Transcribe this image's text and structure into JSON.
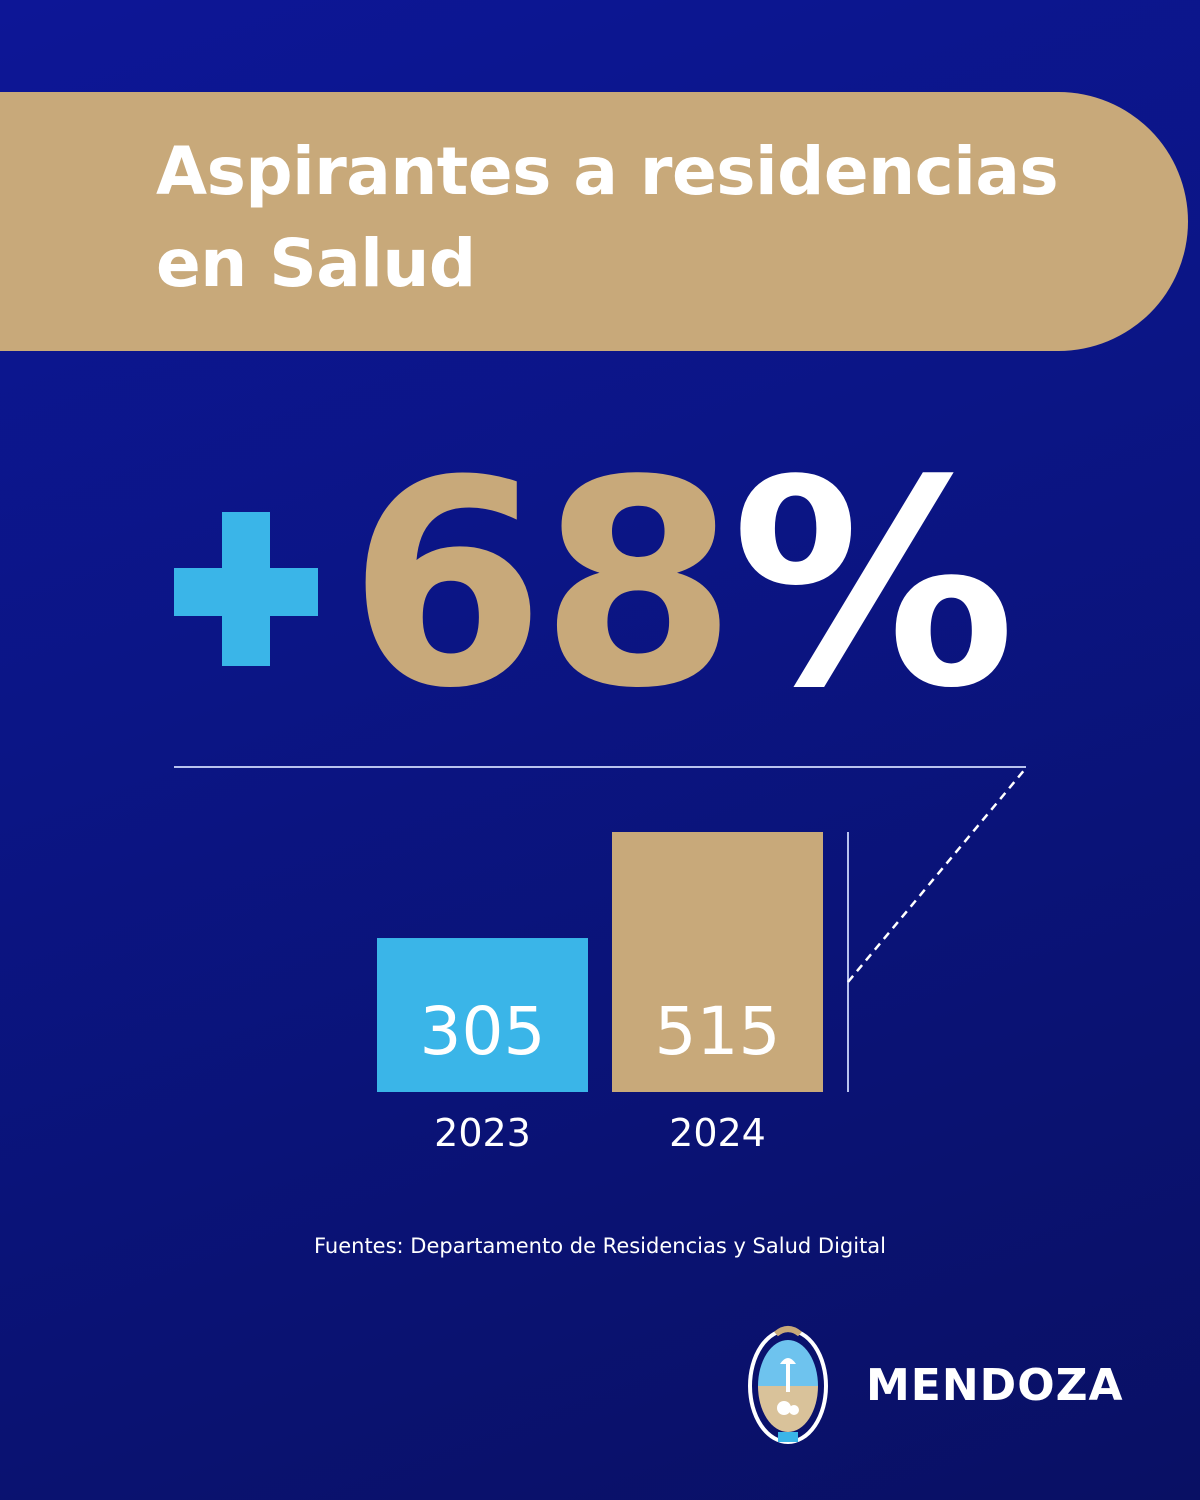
{
  "title": "Aspirantes a residencias en Salud",
  "headline": {
    "sign": "+",
    "value": "68",
    "symbol": "%"
  },
  "colors": {
    "background": "#0b1585",
    "gold": "#c8a97a",
    "cyan": "#3ab5e8",
    "text": "#ffffff"
  },
  "chart_data": {
    "type": "bar",
    "categories": [
      "2023",
      "2024"
    ],
    "values": [
      305,
      515
    ],
    "value_labels": [
      "305",
      "515"
    ],
    "colors": [
      "#3ab5e8",
      "#c8a97a"
    ],
    "change_percent": 68,
    "title": "",
    "xlabel": "",
    "ylabel": ""
  },
  "source": "Fuentes: Departamento de Residencias y Salud Digital",
  "brand": {
    "name": "MENDOZA",
    "logo_icon": "provincial-shield-icon"
  }
}
